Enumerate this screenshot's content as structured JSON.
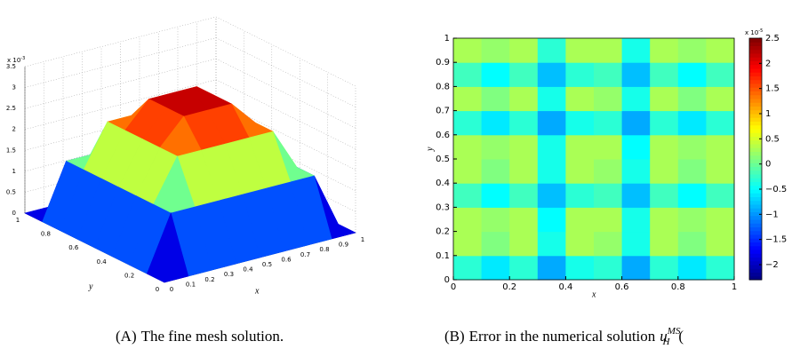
{
  "chart_data": [
    {
      "type": "surface",
      "caption_label": "(A)",
      "caption": "The fine mesh solution.",
      "xlabel": "x",
      "ylabel": "y",
      "x": [
        0,
        0.125,
        0.25,
        0.375,
        0.5,
        0.625,
        0.75,
        0.875,
        1
      ],
      "y": [
        0,
        0.125,
        0.25,
        0.375,
        0.5,
        0.625,
        0.75,
        0.875,
        1
      ],
      "z": [
        [
          0,
          0,
          0,
          0,
          0,
          0,
          0,
          0,
          0
        ],
        [
          0,
          1.3,
          1.3,
          1.3,
          1.3,
          1.3,
          1.3,
          1.3,
          0
        ],
        [
          0,
          1.3,
          2.3,
          2.3,
          2.3,
          2.3,
          2.3,
          1.3,
          0
        ],
        [
          0,
          1.3,
          2.3,
          2.9,
          2.9,
          2.9,
          2.3,
          1.3,
          0
        ],
        [
          0,
          1.3,
          2.3,
          2.9,
          3.2,
          2.9,
          2.3,
          1.3,
          0
        ],
        [
          0,
          1.3,
          2.3,
          2.9,
          2.9,
          2.9,
          2.3,
          1.3,
          0
        ],
        [
          0,
          1.3,
          2.3,
          2.3,
          2.3,
          2.3,
          2.3,
          1.3,
          0
        ],
        [
          0,
          1.3,
          1.3,
          1.3,
          1.3,
          1.3,
          1.3,
          1.3,
          0
        ],
        [
          0,
          0,
          0,
          0,
          0,
          0,
          0,
          0,
          0
        ]
      ],
      "xlim": [
        0,
        1
      ],
      "ylim": [
        0,
        1
      ],
      "zlim": [
        0,
        3.5
      ],
      "xticks": [
        0,
        0.1,
        0.2,
        0.3,
        0.4,
        0.5,
        0.6,
        0.7,
        0.8,
        0.9,
        1
      ],
      "yticks": [
        0,
        0.2,
        0.4,
        0.6,
        0.8,
        1
      ],
      "zticks": [
        0,
        0.5,
        1,
        1.5,
        2,
        2.5,
        3,
        3.5
      ],
      "z_scale_label": {
        "prefix": "x 10",
        "exponent": "-3"
      },
      "colormap": "jet",
      "grid": true
    },
    {
      "type": "heatmap",
      "caption_label": "(B)",
      "caption": "Error in the numerical solution",
      "caption_math": {
        "base": "u",
        "sub": "H",
        "sup": "MS",
        "tail": "("
      },
      "xlabel": "x",
      "ylabel": "y",
      "x": [
        0.05,
        0.15,
        0.25,
        0.35,
        0.45,
        0.55,
        0.65,
        0.75,
        0.85,
        0.95
      ],
      "y": [
        0.05,
        0.15,
        0.25,
        0.35,
        0.45,
        0.55,
        0.65,
        0.75,
        0.85,
        0.95
      ],
      "z": [
        [
          -0.3,
          -0.6,
          -0.3,
          -0.9,
          -0.4,
          -0.3,
          -0.9,
          -0.3,
          -0.6,
          -0.3
        ],
        [
          0.3,
          0.1,
          0.3,
          -0.4,
          0.3,
          0.2,
          -0.4,
          0.3,
          0.1,
          0.3
        ],
        [
          0.3,
          0.2,
          0.3,
          -0.5,
          0.3,
          0.3,
          -0.4,
          0.3,
          0.2,
          0.3
        ],
        [
          -0.2,
          -0.5,
          -0.2,
          -0.8,
          -0.3,
          -0.2,
          -0.8,
          -0.2,
          -0.5,
          -0.2
        ],
        [
          0.3,
          0.1,
          0.3,
          -0.4,
          0.3,
          0.2,
          -0.4,
          0.3,
          0.1,
          0.3
        ],
        [
          0.3,
          0.2,
          0.3,
          -0.4,
          0.3,
          0.3,
          -0.5,
          0.3,
          0.2,
          0.3
        ],
        [
          -0.3,
          -0.6,
          -0.3,
          -0.9,
          -0.4,
          -0.3,
          -0.9,
          -0.3,
          -0.6,
          -0.3
        ],
        [
          0.3,
          0.1,
          0.3,
          -0.4,
          0.3,
          0.2,
          -0.4,
          0.3,
          0.1,
          0.3
        ],
        [
          -0.2,
          -0.5,
          -0.2,
          -0.8,
          -0.3,
          -0.2,
          -0.8,
          -0.2,
          -0.5,
          -0.2
        ],
        [
          0.3,
          0.2,
          0.3,
          -0.3,
          0.3,
          0.3,
          -0.4,
          0.3,
          0.2,
          0.3
        ]
      ],
      "xlim": [
        0,
        1
      ],
      "ylim": [
        0,
        1
      ],
      "xticks": [
        0,
        0.2,
        0.4,
        0.6,
        0.8,
        1
      ],
      "yticks": [
        0,
        0.1,
        0.2,
        0.3,
        0.4,
        0.5,
        0.6,
        0.7,
        0.8,
        0.9,
        1
      ],
      "colorbar": {
        "lim": [
          -2.3,
          2.5
        ],
        "ticks": [
          {
            "value": -2,
            "label": "−2"
          },
          {
            "value": -1.5,
            "label": "−1.5"
          },
          {
            "value": -1,
            "label": "−1"
          },
          {
            "value": -0.5,
            "label": "−0.5"
          },
          0,
          0.5,
          1,
          1.5,
          2,
          2.5
        ],
        "scale_label": {
          "prefix": "x 10",
          "exponent": "-5"
        }
      },
      "colormap": "jet"
    }
  ]
}
